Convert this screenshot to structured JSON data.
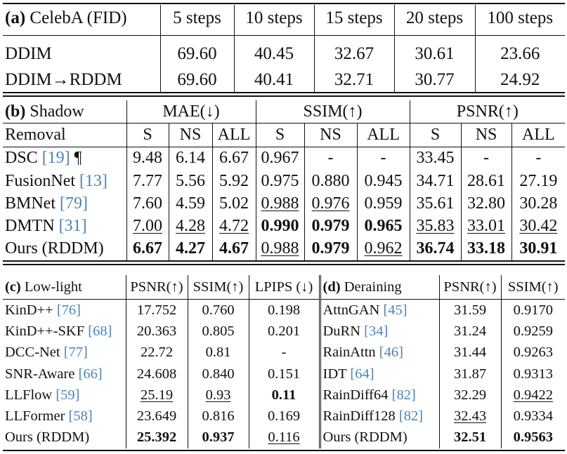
{
  "table_a": {
    "label": "(a)",
    "title": "CelebA (FID)",
    "columns": [
      "5 steps",
      "10 steps",
      "15 steps",
      "20 steps",
      "100 steps"
    ],
    "rows": [
      {
        "method": "DDIM",
        "values": [
          "69.60",
          "40.45",
          "32.67",
          "30.61",
          "23.66"
        ]
      },
      {
        "method": "DDIM→RDDM",
        "values": [
          "69.60",
          "40.41",
          "32.71",
          "30.77",
          "24.92"
        ]
      }
    ]
  },
  "table_b": {
    "label": "(b)",
    "title_line1": "Shadow",
    "title_line2": "Removal",
    "groups": [
      "MAE(↓)",
      "SSIM(↑)",
      "PSNR(↑)"
    ],
    "subcols": [
      "S",
      "NS",
      "ALL",
      "S",
      "NS",
      "ALL",
      "S",
      "NS",
      "ALL"
    ],
    "rows": [
      {
        "method": "DSC",
        "ref": "[19]",
        "suffix": " ¶",
        "values": [
          "9.48",
          "6.14",
          "6.67",
          "0.967",
          "-",
          "-",
          "33.45",
          "-",
          "-"
        ]
      },
      {
        "method": "FusionNet",
        "ref": "[13]",
        "suffix": "",
        "values": [
          "7.77",
          "5.56",
          "5.92",
          "0.975",
          "0.880",
          "0.945",
          "34.71",
          "28.61",
          "27.19"
        ]
      },
      {
        "method": "BMNet",
        "ref": "[79]",
        "suffix": "",
        "values": [
          "7.60",
          "4.59",
          "5.02",
          "0.988",
          "0.976",
          "0.959",
          "35.61",
          "32.80",
          "30.28"
        ]
      },
      {
        "method": "DMTN",
        "ref": "[31]",
        "suffix": "",
        "values": [
          "7.00",
          "4.28",
          "4.72",
          "0.990",
          "0.979",
          "0.965",
          "35.83",
          "33.01",
          "30.42"
        ]
      },
      {
        "method": "Ours (RDDM)",
        "ref": "",
        "suffix": "",
        "values": [
          "6.67",
          "4.27",
          "4.67",
          "0.988",
          "0.979",
          "0.962",
          "36.74",
          "33.18",
          "30.91"
        ]
      }
    ]
  },
  "table_c": {
    "label": "(c)",
    "title": "Low-light",
    "columns": [
      "PSNR(↑)",
      "SSIM(↑)",
      "LPIPS (↓)"
    ],
    "rows": [
      {
        "method": "KinD++",
        "ref": "[76]",
        "values": [
          "17.752",
          "0.760",
          "0.198"
        ]
      },
      {
        "method": "KinD++-SKF",
        "ref": "[68]",
        "values": [
          "20.363",
          "0.805",
          "0.201"
        ]
      },
      {
        "method": "DCC-Net",
        "ref": "[77]",
        "values": [
          "22.72",
          "0.81",
          "-"
        ]
      },
      {
        "method": "SNR-Aware",
        "ref": "[66]",
        "values": [
          "24.608",
          "0.840",
          "0.151"
        ]
      },
      {
        "method": "LLFlow",
        "ref": "[59]",
        "values": [
          "25.19",
          "0.93",
          "0.11"
        ]
      },
      {
        "method": "LLFormer",
        "ref": "[58]",
        "values": [
          "23.649",
          "0.816",
          "0.169"
        ]
      },
      {
        "method": "Ours (RDDM)",
        "ref": "",
        "values": [
          "25.392",
          "0.937",
          "0.116"
        ]
      }
    ]
  },
  "table_d": {
    "label": "(d)",
    "title": "Deraining",
    "columns": [
      "PSNR(↑)",
      "SSIM(↑)"
    ],
    "rows": [
      {
        "method": "AttnGAN",
        "ref": "[45]",
        "values": [
          "31.59",
          "0.9170"
        ]
      },
      {
        "method": "DuRN",
        "ref": "[34]",
        "values": [
          "31.24",
          "0.9259"
        ]
      },
      {
        "method": "RainAttn",
        "ref": "[46]",
        "values": [
          "31.44",
          "0.9263"
        ]
      },
      {
        "method": "IDT",
        "ref": "[64]",
        "values": [
          "31.87",
          "0.9313"
        ]
      },
      {
        "method": "RainDiff64",
        "ref": "[82]",
        "values": [
          "32.29",
          "0.9422"
        ]
      },
      {
        "method": "RainDiff128",
        "ref": "[82]",
        "values": [
          "32.43",
          "0.9334"
        ]
      },
      {
        "method": "Ours (RDDM)",
        "ref": "",
        "values": [
          "32.51",
          "0.9563"
        ]
      }
    ]
  },
  "colors": {
    "citation": "#4a84b8",
    "text": "#111111"
  }
}
